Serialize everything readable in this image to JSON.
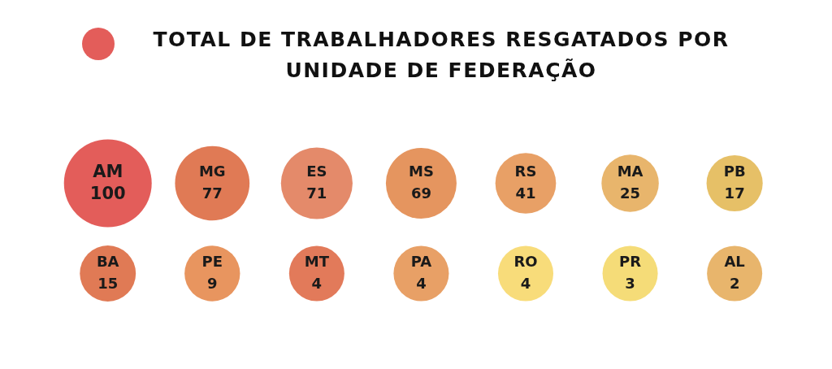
{
  "chart_data": {
    "type": "other",
    "title": "TOTAL DE TRABALHADORES RESGATADOS POR UNIDADE DE FEDERAÇÃO",
    "categories": [
      "AM",
      "MG",
      "ES",
      "MS",
      "RS",
      "MA",
      "PB",
      "BA",
      "PE",
      "MT",
      "PA",
      "RO",
      "PR",
      "AL"
    ],
    "values": [
      100,
      77,
      71,
      69,
      41,
      25,
      17,
      15,
      9,
      4,
      4,
      4,
      3,
      2
    ],
    "colors": [
      "#e35d5a",
      "#e07a55",
      "#e48a6a",
      "#e5955f",
      "#e8a066",
      "#e8b56c",
      "#e6c067",
      "#e07a55",
      "#e8955f",
      "#e27a5a",
      "#e8a066",
      "#f8dc7a",
      "#f5dc78",
      "#e8b56c"
    ],
    "data_labels": true
  }
}
